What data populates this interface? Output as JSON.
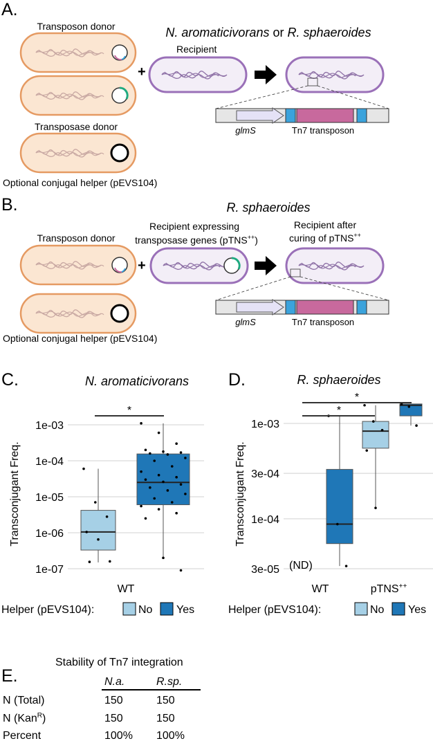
{
  "panel_a": {
    "letter": "A.",
    "transposon_donor": "Transposon donor",
    "transposase_donor": "Transposase donor",
    "helper": "Optional conjugal helper (pEVS104)",
    "species1": "N. aromaticivorans",
    "or_word": "or",
    "species2": "R. sphaeroides",
    "recipient": "Recipient",
    "plus": "+",
    "gene": "glmS",
    "transposon": "Tn7 transposon",
    "colors": {
      "donor_fill": "#fbe6d2",
      "donor_stroke": "#e59a62",
      "recipient_fill": "#f3eef7",
      "recipient_stroke": "#9a70b8",
      "dna": "#c9a9a3",
      "glms_fill": "#e5e2f6",
      "te_blue": "#3ba3dc",
      "cargo_pink": "#c8699d",
      "plasmid_green": "#1faa80"
    }
  },
  "panel_b": {
    "letter": "B.",
    "species": "R. sphaeroides",
    "transposon_donor": "Transposon donor",
    "recipient_expr_l1": "Recipient expressing",
    "recipient_expr_l2": "transposase genes (pTNS",
    "sup": "++",
    "close_paren": ")",
    "recipient_after_l1": "Recipient after",
    "recipient_after_l2": "curing of pTNS",
    "helper": "Optional conjugal helper (pEVS104)",
    "plus": "+",
    "gene": "glmS",
    "transposon": "Tn7 transposon"
  },
  "chart_data": [
    {
      "panel": "C.",
      "type": "box",
      "title": "N. aromaticivorans",
      "ylabel": "Transconjugant Freq.",
      "yscale": "log",
      "ylim": [
        7e-08,
        0.0015
      ],
      "yticks": [
        "1e-03",
        "1e-04",
        "1e-05",
        "1e-06",
        "1e-07"
      ],
      "categories": [
        "WT"
      ],
      "legend_title": "Helper (pEVS104):",
      "legend": [
        "No",
        "Yes"
      ],
      "colors": [
        "#a6d0e6",
        "#1f77b7"
      ],
      "significance": "*",
      "groups": [
        {
          "helper": "No",
          "whisker_low": 1.5e-07,
          "q1": 3.3e-07,
          "median": 1.05e-06,
          "q3": 4.2e-06,
          "whisker_high": 6e-05,
          "points": [
            6e-05,
            7e-06,
            2.8e-06,
            1.05e-06,
            6.5e-07,
            1.6e-07,
            1.55e-07
          ]
        },
        {
          "helper": "Yes",
          "whisker_low": 2e-07,
          "q1": 6e-06,
          "median": 2.5e-05,
          "q3": 0.000155,
          "whisker_high": 0.0011,
          "points": [
            0.0011,
            0.0006,
            0.0003,
            0.0002,
            0.00018,
            0.00017,
            0.00016,
            0.00015,
            0.00012,
            0.0001,
            7e-05,
            5e-05,
            4e-05,
            3.5e-05,
            3e-05,
            2.6e-05,
            2.2e-05,
            1.8e-05,
            1.5e-05,
            1.2e-05,
            9e-06,
            7e-06,
            5.5e-06,
            4.5e-06,
            3.5e-06,
            2.5e-06,
            2e-07,
            9e-08
          ]
        }
      ]
    },
    {
      "panel": "D.",
      "type": "box",
      "title": "R. sphaeroides",
      "ylabel": "Transconjugant Freq.",
      "yscale": "log",
      "ylim": [
        2.8e-05,
        0.0023
      ],
      "yticks": [
        "1e-03",
        "3e-04",
        "1e-04",
        "3e-05"
      ],
      "categories": [
        "WT",
        "pTNS++"
      ],
      "note": "(ND)",
      "legend_title": "Helper (pEVS104):",
      "legend": [
        "No",
        "Yes"
      ],
      "colors": [
        "#a6d0e6",
        "#1f77b7"
      ],
      "significance": [
        "*",
        "*"
      ],
      "groups": [
        {
          "category": "WT",
          "helper": "Yes",
          "whisker_low": 3.2e-05,
          "q1": 5.5e-05,
          "median": 8.8e-05,
          "q3": 0.00033,
          "whisker_high": 0.0012,
          "points": [
            0.0012,
            8.8e-05,
            3.2e-05
          ]
        },
        {
          "category": "pTNS++",
          "helper": "No",
          "whisker_low": 0.00013,
          "q1": 0.00055,
          "median": 0.00083,
          "q3": 0.00105,
          "whisker_high": 0.00155,
          "points": [
            0.00155,
            0.00105,
            0.00085,
            0.00052,
            0.00013
          ]
        },
        {
          "category": "pTNS++",
          "helper": "Yes",
          "whisker_low": 0.00095,
          "q1": 0.0012,
          "median": 0.00155,
          "q3": 0.0016,
          "whisker_high": 0.0016,
          "points": [
            0.0016,
            0.0015,
            0.00095
          ]
        }
      ]
    }
  ],
  "panel_e": {
    "letter": "E.",
    "title": "Stability of Tn7 integration",
    "col1": "N.a.",
    "col2": "R.sp.",
    "rows": [
      {
        "label": "N (Total)",
        "v1": "150",
        "v2": "150"
      },
      {
        "label": "N (Kan",
        "sup": "R",
        "close": ")",
        "v1": "150",
        "v2": "150"
      },
      {
        "label": "Percent",
        "v1": "100%",
        "v2": "100%"
      }
    ]
  }
}
